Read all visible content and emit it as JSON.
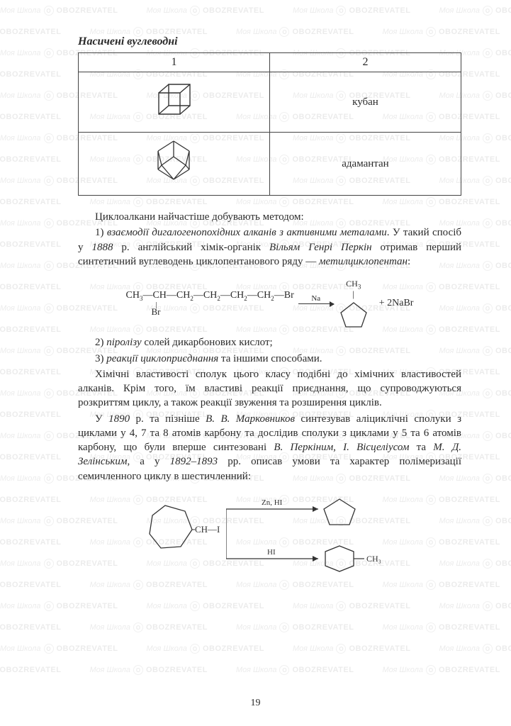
{
  "section_title": "Насичені вуглеводні",
  "table": {
    "headers": [
      "1",
      "2"
    ],
    "rows": [
      {
        "name": "кубан"
      },
      {
        "name": "адамантан"
      }
    ]
  },
  "body": {
    "p1": "Циклоалкани найчастіше добувають методом:",
    "p2_lead": "1) ",
    "p2_italic": "взаємодії дигалогенопохідних алканів з активними металами",
    "p2_tail": ". У такий спосіб у ",
    "p2_year": "1888",
    "p2_tail2": " р. англійський хімік-органік ",
    "p2_name": "Вільям Генрі Перкін",
    "p2_tail3": " отримав перший синтетичний вуглеводень циклопентанового ряду — ",
    "p2_italic2": "метилциклопентан",
    "p2_end": ":",
    "reaction1": {
      "reactant": "CH₃—CH—CH₂—CH₂—CH₂—CH₂—Br",
      "reactant_sub": "Br",
      "arrow_label": "Na",
      "product_sub": "CH₃",
      "product_tail": "+  2NaBr"
    },
    "p3_lead": "2) ",
    "p3_italic": "піролізу",
    "p3_tail": " солей дикарбонових кислот;",
    "p4_lead": "3) ",
    "p4_italic": "реакції циклоприєднання",
    "p4_tail": " та іншими способами.",
    "p5": "Хімічні властивості сполук цього класу подібні до хімічних властивостей алканів. Крім того, їм властиві реакції приєднання, що супроводжуються розкриттям циклу, а також реакції звуження та розширення циклів.",
    "p6_a": "У ",
    "p6_year": "1890",
    "p6_b": " р. та пізніше ",
    "p6_name1": "В. В. Марковников",
    "p6_c": " синтезував аліциклічні сполуки з циклами у 4, 7 та 8 атомів карбону та дослідив сполуки з циклами у 5 та 6 атомів карбону, що були вперше синтезовані ",
    "p6_name2": "В. Перкіним",
    "p6_d": ", ",
    "p6_name3": "І. Вісцеліусом",
    "p6_e": " та ",
    "p6_name4": "М. Д. Зелінським",
    "p6_f": ", а у ",
    "p6_years2": "1892–1893",
    "p6_g": " рр. описав умови та характер полімеризації семичленного циклу в шестичленний:",
    "reaction2": {
      "arrow1_label": "Zn, HI",
      "arrow2_label": "HI",
      "product2_sub": "CH₃"
    }
  },
  "page_number": "19",
  "watermark": {
    "text1": "Моя Школа",
    "text2": "OBOZREVATEL"
  },
  "colors": {
    "text": "#2a2a2a",
    "border": "#444444",
    "background": "#ffffff",
    "watermark": "#888888"
  }
}
